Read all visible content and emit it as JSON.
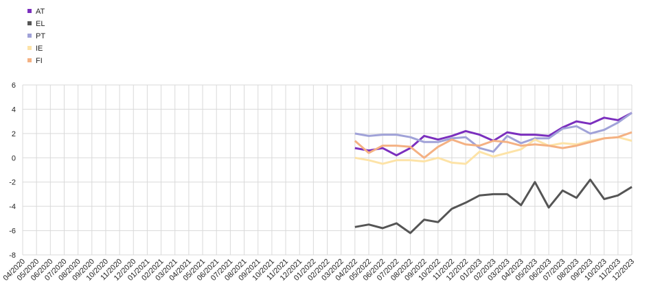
{
  "chart_data": {
    "type": "line",
    "legend": "top-left",
    "grid": true,
    "categories": [
      "04/2020",
      "05/2020",
      "06/2020",
      "07/2020",
      "08/2020",
      "09/2020",
      "10/2020",
      "11/2020",
      "12/2020",
      "01/2021",
      "02/2021",
      "03/2021",
      "04/2021",
      "05/2021",
      "06/2021",
      "07/2021",
      "08/2021",
      "09/2021",
      "10/2021",
      "11/2021",
      "12/2021",
      "01/2022",
      "02/2022",
      "03/2022",
      "04/2022",
      "05/2022",
      "06/2022",
      "07/2022",
      "08/2022",
      "09/2022",
      "10/2022",
      "11/2022",
      "12/2022",
      "01/2023",
      "02/2023",
      "03/2023",
      "04/2023",
      "05/2023",
      "06/2023",
      "07/2023",
      "08/2023",
      "09/2023",
      "10/2023",
      "11/2023",
      "12/2023"
    ],
    "ylim": [
      -8,
      6
    ],
    "yticks": [
      -8,
      -6,
      -4,
      -2,
      0,
      2,
      4,
      6
    ],
    "series": [
      {
        "name": "AT",
        "color": "#7b2fbe",
        "values": [
          null,
          null,
          null,
          null,
          null,
          null,
          null,
          null,
          null,
          null,
          null,
          null,
          null,
          null,
          null,
          null,
          null,
          null,
          null,
          null,
          null,
          null,
          null,
          null,
          0.8,
          0.6,
          0.8,
          0.2,
          0.8,
          1.8,
          1.5,
          1.8,
          2.2,
          1.9,
          1.4,
          2.1,
          1.9,
          1.9,
          1.8,
          2.5,
          3.0,
          2.8,
          3.3,
          3.1,
          3.7
        ]
      },
      {
        "name": "EL",
        "color": "#555555",
        "values": [
          null,
          null,
          null,
          null,
          null,
          null,
          null,
          null,
          null,
          null,
          null,
          null,
          null,
          null,
          null,
          null,
          null,
          null,
          null,
          null,
          null,
          null,
          null,
          null,
          -5.7,
          -5.5,
          -5.8,
          -5.4,
          -6.2,
          -5.1,
          -5.3,
          -4.2,
          -3.7,
          -3.1,
          -3.0,
          -3.0,
          -3.9,
          -2.0,
          -4.1,
          -2.7,
          -3.3,
          -1.8,
          -3.4,
          -3.1,
          -2.4
        ]
      },
      {
        "name": "PT",
        "color": "#a0a2d8",
        "values": [
          null,
          null,
          null,
          null,
          null,
          null,
          null,
          null,
          null,
          null,
          null,
          null,
          null,
          null,
          null,
          null,
          null,
          null,
          null,
          null,
          null,
          null,
          null,
          null,
          2.0,
          1.8,
          1.9,
          1.9,
          1.7,
          1.3,
          1.3,
          1.6,
          1.7,
          0.8,
          0.5,
          1.8,
          1.2,
          1.6,
          1.6,
          2.4,
          2.6,
          2.0,
          2.3,
          2.9,
          3.7
        ]
      },
      {
        "name": "IE",
        "color": "#fde3a7",
        "values": [
          null,
          null,
          null,
          null,
          null,
          null,
          null,
          null,
          null,
          null,
          null,
          null,
          null,
          null,
          null,
          null,
          null,
          null,
          null,
          null,
          null,
          null,
          null,
          null,
          0.0,
          -0.2,
          -0.5,
          -0.2,
          -0.2,
          -0.3,
          0.0,
          -0.4,
          -0.5,
          0.5,
          0.1,
          0.4,
          0.7,
          1.5,
          1.0,
          1.2,
          1.1,
          1.4,
          1.6,
          1.7,
          1.4
        ]
      },
      {
        "name": "FI",
        "color": "#f4b183",
        "values": [
          null,
          null,
          null,
          null,
          null,
          null,
          null,
          null,
          null,
          null,
          null,
          null,
          null,
          null,
          null,
          null,
          null,
          null,
          null,
          null,
          null,
          null,
          null,
          null,
          1.4,
          0.4,
          1.0,
          1.0,
          0.9,
          0.0,
          0.9,
          1.5,
          1.1,
          1.0,
          1.4,
          1.3,
          1.0,
          1.1,
          1.0,
          0.8,
          1.0,
          1.3,
          1.6,
          1.7,
          2.1
        ]
      }
    ]
  }
}
